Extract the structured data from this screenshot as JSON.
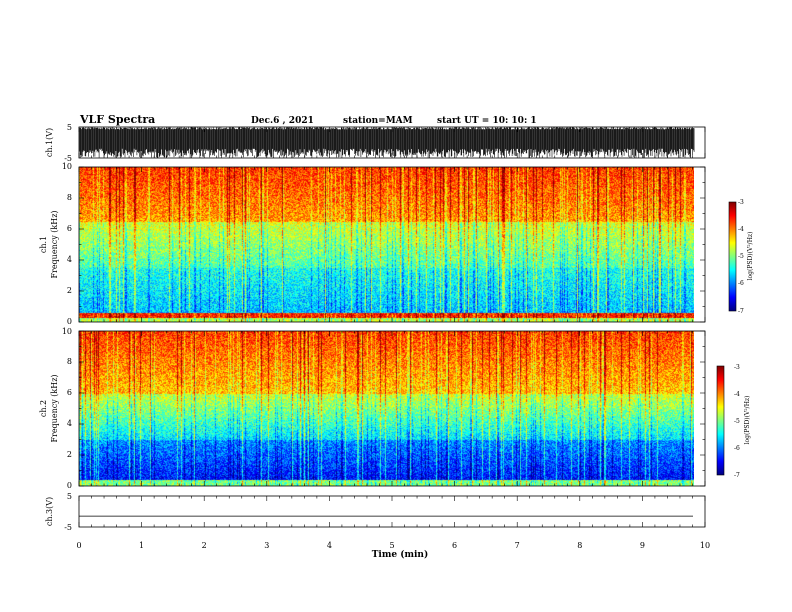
{
  "header": {
    "title": "VLF Spectra",
    "date": "Dec.6 , 2021",
    "station": "station=MAM",
    "start": "start UT = 10: 10: 1"
  },
  "chart_data": [
    {
      "type": "line",
      "name": "waveform-ch1",
      "ylabel": "ch.1(V)",
      "yticks": [
        "5",
        "-5"
      ],
      "ylim": [
        -5,
        5
      ],
      "xlim": [
        0,
        10
      ],
      "description_series": "dense waveform oscillating near full scale"
    },
    {
      "type": "heatmap",
      "name": "spectrogram-ch1",
      "ylabel_top": "ch.1",
      "ylabel": "Frequency (kHz)",
      "ylim": [
        0,
        10
      ],
      "yticks": [
        "0",
        "2",
        "4",
        "6",
        "8",
        "10"
      ],
      "xlim": [
        0,
        10
      ],
      "data_end_min": 9.83,
      "colorbar": {
        "label": "log(PSD)(V²/Hz)",
        "range": [
          -7,
          -3
        ],
        "ticks": [
          "-3",
          "-4",
          "-5",
          "-6",
          "-7"
        ]
      }
    },
    {
      "type": "heatmap",
      "name": "spectrogram-ch2",
      "ylabel_top": "ch.2",
      "ylabel": "Frequency (kHz)",
      "ylim": [
        0,
        10
      ],
      "yticks": [
        "0",
        "2",
        "4",
        "6",
        "8",
        "10"
      ],
      "xlim": [
        0,
        10
      ],
      "data_end_min": 9.83,
      "colorbar": {
        "label": "log(PSD)(V²/Hz)",
        "range": [
          -7,
          -3
        ],
        "ticks": [
          "-3",
          "-4",
          "-5",
          "-6",
          "-7"
        ]
      }
    },
    {
      "type": "line",
      "name": "waveform-ch3",
      "ylabel": "ch.3(V)",
      "yticks": [
        "5",
        "-5"
      ],
      "ylim": [
        -5,
        5
      ],
      "xlim": [
        0,
        10
      ],
      "value": -1.5
    }
  ],
  "xaxis": {
    "label": "Time (min)",
    "ticks": [
      "0",
      "1",
      "2",
      "3",
      "4",
      "5",
      "6",
      "7",
      "8",
      "9",
      "10"
    ]
  },
  "colors": {
    "jet": [
      "#00007f",
      "#0000ff",
      "#007fff",
      "#00ffff",
      "#7fff7f",
      "#ffff00",
      "#ff7f00",
      "#ff0000",
      "#7f0000"
    ]
  }
}
